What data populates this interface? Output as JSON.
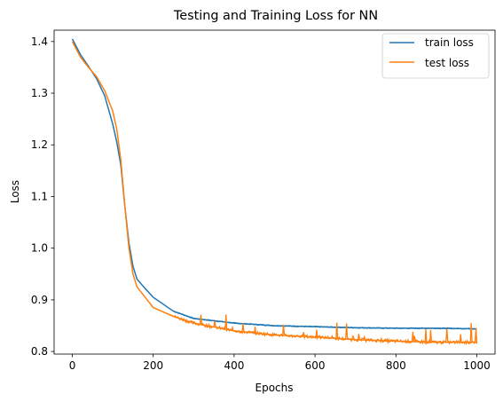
{
  "chart_data": {
    "type": "line",
    "title": "Testing and Training Loss for NN",
    "xlabel": "Epochs",
    "ylabel": "Loss",
    "xlim": [
      -45,
      1045
    ],
    "ylim": [
      0.795,
      1.422
    ],
    "xticks": [
      0,
      200,
      400,
      600,
      800,
      1000
    ],
    "xtick_labels": [
      "0",
      "200",
      "400",
      "600",
      "800",
      "1000"
    ],
    "yticks": [
      0.8,
      0.9,
      1.0,
      1.1,
      1.2,
      1.3,
      1.4
    ],
    "ytick_labels": [
      "0.8",
      "0.9",
      "1.0",
      "1.1",
      "1.2",
      "1.3",
      "1.4"
    ],
    "grid": false,
    "legend_position": "top-right",
    "series": [
      {
        "name": "train loss",
        "color": "#1f77b4",
        "x": [
          0,
          20,
          40,
          60,
          80,
          100,
          110,
          120,
          130,
          140,
          150,
          160,
          180,
          200,
          250,
          300,
          400,
          500,
          600,
          700,
          800,
          900,
          1000
        ],
        "y": [
          1.405,
          1.375,
          1.352,
          1.328,
          1.295,
          1.24,
          1.205,
          1.16,
          1.08,
          1.01,
          0.965,
          0.94,
          0.922,
          0.905,
          0.878,
          0.864,
          0.855,
          0.85,
          0.848,
          0.846,
          0.845,
          0.845,
          0.844
        ]
      },
      {
        "name": "test loss",
        "color": "#ff7f0e",
        "x": [
          0,
          20,
          40,
          60,
          80,
          100,
          110,
          120,
          130,
          140,
          150,
          160,
          180,
          200,
          250,
          300,
          400,
          500,
          600,
          700,
          800,
          900,
          1000
        ],
        "y": [
          1.4,
          1.37,
          1.35,
          1.332,
          1.305,
          1.265,
          1.23,
          1.17,
          1.08,
          1.0,
          0.95,
          0.925,
          0.905,
          0.885,
          0.868,
          0.855,
          0.84,
          0.832,
          0.828,
          0.823,
          0.82,
          0.818,
          0.818
        ]
      }
    ]
  }
}
